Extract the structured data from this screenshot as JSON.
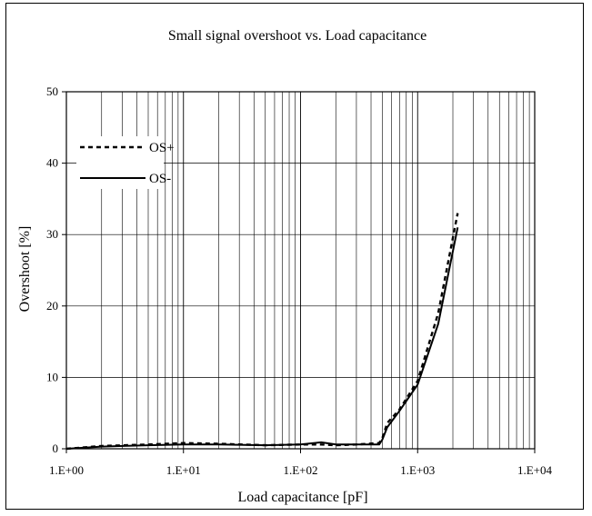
{
  "chart_data": {
    "type": "line",
    "title": "Small signal overshoot vs. Load capacitance",
    "xlabel": "Load capacitance [pF]",
    "ylabel": "Overshoot [%]",
    "x_scale": "log",
    "xlim": [
      1,
      10000
    ],
    "ylim": [
      0,
      50
    ],
    "x_ticks": [
      1,
      10,
      100,
      1000,
      10000
    ],
    "x_tick_labels": [
      "1.E+00",
      "1.E+01",
      "1.E+02",
      "1.E+03",
      "1.E+04"
    ],
    "y_ticks": [
      0,
      10,
      20,
      30,
      40,
      50
    ],
    "y_tick_labels": [
      "0",
      "10",
      "20",
      "30",
      "40",
      "50"
    ],
    "grid": true,
    "legend_position": "top-left",
    "series": [
      {
        "name": "OS+",
        "style": "dashed",
        "color": "#000000",
        "x": [
          1,
          2,
          5,
          10,
          20,
          50,
          100,
          150,
          200,
          300,
          470,
          500,
          550,
          700,
          1000,
          1500,
          2200
        ],
        "y": [
          0,
          0.4,
          0.6,
          0.8,
          0.7,
          0.5,
          0.6,
          0.6,
          0.5,
          0.6,
          0.8,
          1.5,
          3.6,
          5.5,
          9.5,
          19,
          33
        ]
      },
      {
        "name": "OS-",
        "style": "solid",
        "color": "#000000",
        "x": [
          1,
          2,
          5,
          10,
          20,
          50,
          100,
          150,
          200,
          300,
          470,
          500,
          550,
          700,
          1000,
          1500,
          2200
        ],
        "y": [
          0,
          0.3,
          0.5,
          0.6,
          0.6,
          0.5,
          0.6,
          0.9,
          0.6,
          0.6,
          0.6,
          1.3,
          3,
          5.3,
          9,
          17.5,
          31
        ]
      }
    ]
  }
}
